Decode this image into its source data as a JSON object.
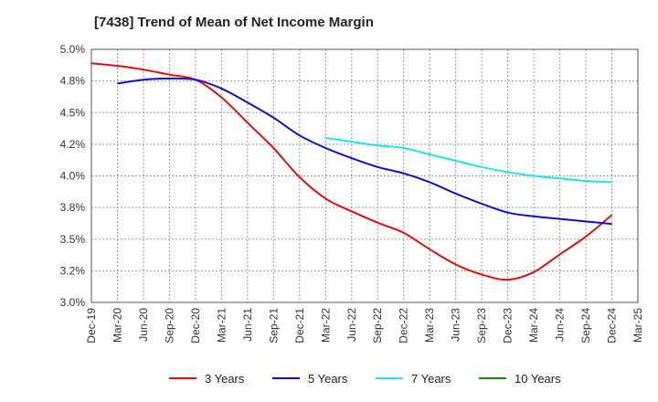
{
  "chart_data": {
    "type": "line",
    "title": "[7438]  Trend of Mean of Net Income Margin",
    "xlabel": "",
    "ylabel": "",
    "ylim": [
      3.0,
      5.0
    ],
    "yticks": [
      "5.0%",
      "4.8%",
      "4.5%",
      "4.2%",
      "4.0%",
      "3.8%",
      "3.5%",
      "3.2%",
      "3.0%"
    ],
    "ytick_values": [
      5.0,
      4.75,
      4.5,
      4.25,
      4.0,
      3.75,
      3.5,
      3.25,
      3.0
    ],
    "categories": [
      "Dec-19",
      "Mar-20",
      "Jun-20",
      "Sep-20",
      "Dec-20",
      "Mar-21",
      "Jun-21",
      "Sep-21",
      "Dec-21",
      "Mar-22",
      "Jun-22",
      "Sep-22",
      "Dec-22",
      "Mar-23",
      "Jun-23",
      "Sep-23",
      "Dec-23",
      "Mar-24",
      "Jun-24",
      "Sep-24",
      "Dec-24",
      "Mar-25"
    ],
    "grid": true,
    "legend_position": "bottom",
    "series": [
      {
        "name": "3 Years",
        "color": "#dd1111",
        "values": [
          4.89,
          4.87,
          4.84,
          4.8,
          4.76,
          4.62,
          4.42,
          4.22,
          3.99,
          3.82,
          3.72,
          3.63,
          3.55,
          3.42,
          3.3,
          3.22,
          3.18,
          3.24,
          3.38,
          3.52,
          3.69,
          null
        ]
      },
      {
        "name": "5 Years",
        "color": "#1111bb",
        "values": [
          null,
          4.73,
          4.76,
          4.77,
          4.76,
          4.69,
          4.58,
          4.46,
          4.32,
          4.22,
          4.14,
          4.07,
          4.02,
          3.95,
          3.86,
          3.78,
          3.71,
          3.68,
          3.66,
          3.64,
          3.62,
          null
        ]
      },
      {
        "name": "7 Years",
        "color": "#22e5e5",
        "values": [
          null,
          null,
          null,
          null,
          null,
          null,
          null,
          null,
          null,
          4.3,
          4.27,
          4.24,
          4.22,
          4.17,
          4.12,
          4.07,
          4.03,
          4.0,
          3.98,
          3.96,
          3.95,
          null
        ]
      },
      {
        "name": "10 Years",
        "color": "#118811",
        "values": [
          null,
          null,
          null,
          null,
          null,
          null,
          null,
          null,
          null,
          null,
          null,
          null,
          null,
          null,
          null,
          null,
          null,
          null,
          null,
          null,
          null,
          null
        ]
      }
    ]
  }
}
